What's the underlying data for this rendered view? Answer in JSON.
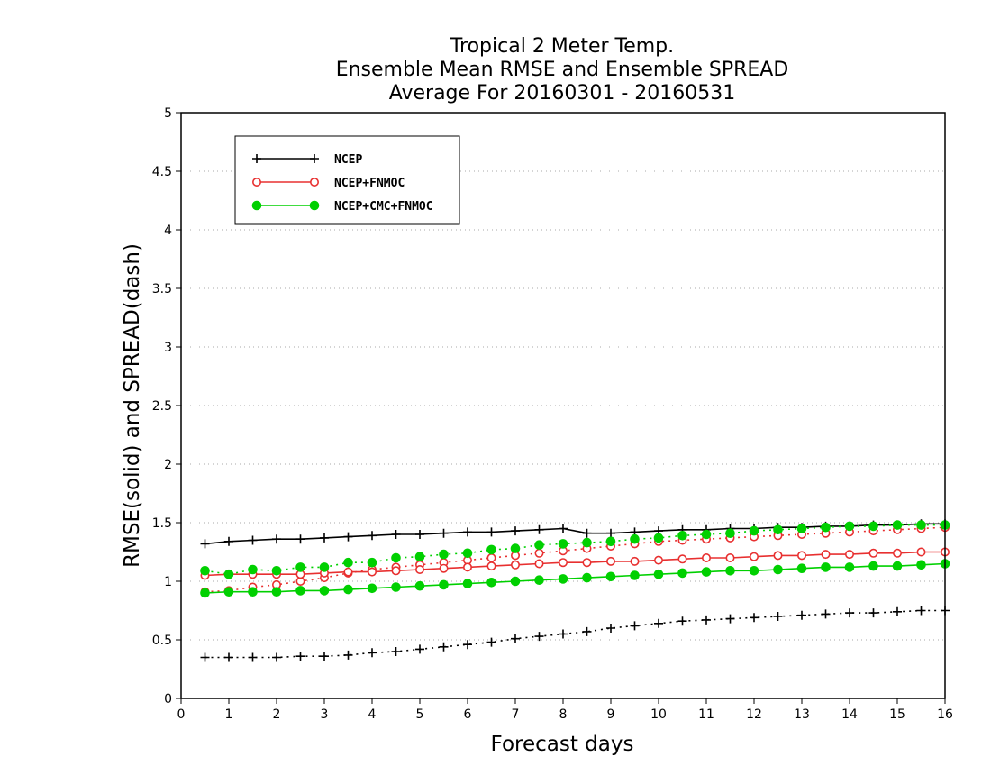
{
  "chart_data": {
    "type": "line",
    "title": [
      "Tropical 2 Meter Temp.",
      "Ensemble Mean RMSE and Ensemble SPREAD",
      "Average For 20160301 - 20160531"
    ],
    "xlabel": "Forecast days",
    "ylabel": "RMSE(solid) and SPREAD(dash)",
    "xlim": [
      0,
      16
    ],
    "ylim": [
      0,
      5
    ],
    "x_ticks": [
      "0",
      "1",
      "2",
      "3",
      "4",
      "5",
      "6",
      "7",
      "8",
      "9",
      "10",
      "11",
      "12",
      "13",
      "14",
      "15",
      "16"
    ],
    "y_ticks": [
      "0",
      "0.5",
      "1",
      "1.5",
      "2",
      "2.5",
      "3",
      "3.5",
      "4",
      "4.5",
      "5"
    ],
    "grid": "horizontal dotted",
    "legend_position": "top-left",
    "x": [
      0.5,
      1,
      1.5,
      2,
      2.5,
      3,
      3.5,
      4,
      4.5,
      5,
      5.5,
      6,
      6.5,
      7,
      7.5,
      8,
      8.5,
      9,
      9.5,
      10,
      10.5,
      11,
      11.5,
      12,
      12.5,
      13,
      13.5,
      14,
      14.5,
      15,
      15.5,
      16
    ],
    "series": [
      {
        "name": "NCEP",
        "color": "#000000",
        "marker": "plus",
        "rmse": [
          1.32,
          1.34,
          1.35,
          1.36,
          1.36,
          1.37,
          1.38,
          1.39,
          1.4,
          1.4,
          1.41,
          1.42,
          1.42,
          1.43,
          1.44,
          1.45,
          1.41,
          1.41,
          1.42,
          1.43,
          1.44,
          1.44,
          1.45,
          1.45,
          1.46,
          1.46,
          1.47,
          1.47,
          1.48,
          1.48,
          1.49,
          1.49
        ],
        "spread": [
          0.35,
          0.35,
          0.35,
          0.35,
          0.36,
          0.36,
          0.37,
          0.39,
          0.4,
          0.42,
          0.44,
          0.46,
          0.48,
          0.51,
          0.53,
          0.55,
          0.57,
          0.6,
          0.62,
          0.64,
          0.66,
          0.67,
          0.68,
          0.69,
          0.7,
          0.71,
          0.72,
          0.73,
          0.73,
          0.74,
          0.75,
          0.75
        ]
      },
      {
        "name": "NCEP+FNMOC",
        "color": "#e83030",
        "marker": "open-circle",
        "rmse": [
          1.05,
          1.06,
          1.06,
          1.06,
          1.06,
          1.07,
          1.08,
          1.08,
          1.09,
          1.1,
          1.11,
          1.12,
          1.13,
          1.14,
          1.15,
          1.16,
          1.16,
          1.17,
          1.17,
          1.18,
          1.19,
          1.2,
          1.2,
          1.21,
          1.22,
          1.22,
          1.23,
          1.23,
          1.24,
          1.24,
          1.25,
          1.25
        ],
        "spread": [
          0.91,
          0.92,
          0.95,
          0.97,
          1.0,
          1.03,
          1.07,
          1.1,
          1.12,
          1.14,
          1.16,
          1.18,
          1.2,
          1.22,
          1.24,
          1.26,
          1.28,
          1.3,
          1.32,
          1.34,
          1.35,
          1.36,
          1.37,
          1.38,
          1.39,
          1.4,
          1.41,
          1.42,
          1.43,
          1.44,
          1.45,
          1.46
        ]
      },
      {
        "name": "NCEP+CMC+FNMOC",
        "color": "#00d000",
        "marker": "filled-circle",
        "rmse": [
          0.9,
          0.91,
          0.91,
          0.91,
          0.92,
          0.92,
          0.93,
          0.94,
          0.95,
          0.96,
          0.97,
          0.98,
          0.99,
          1.0,
          1.01,
          1.02,
          1.03,
          1.04,
          1.05,
          1.06,
          1.07,
          1.08,
          1.09,
          1.09,
          1.1,
          1.11,
          1.12,
          1.12,
          1.13,
          1.13,
          1.14,
          1.15
        ],
        "spread": [
          1.09,
          1.06,
          1.1,
          1.09,
          1.12,
          1.12,
          1.16,
          1.16,
          1.2,
          1.21,
          1.23,
          1.24,
          1.27,
          1.28,
          1.31,
          1.32,
          1.33,
          1.34,
          1.36,
          1.37,
          1.39,
          1.4,
          1.41,
          1.43,
          1.44,
          1.45,
          1.46,
          1.47,
          1.47,
          1.48,
          1.48,
          1.48
        ]
      }
    ]
  }
}
